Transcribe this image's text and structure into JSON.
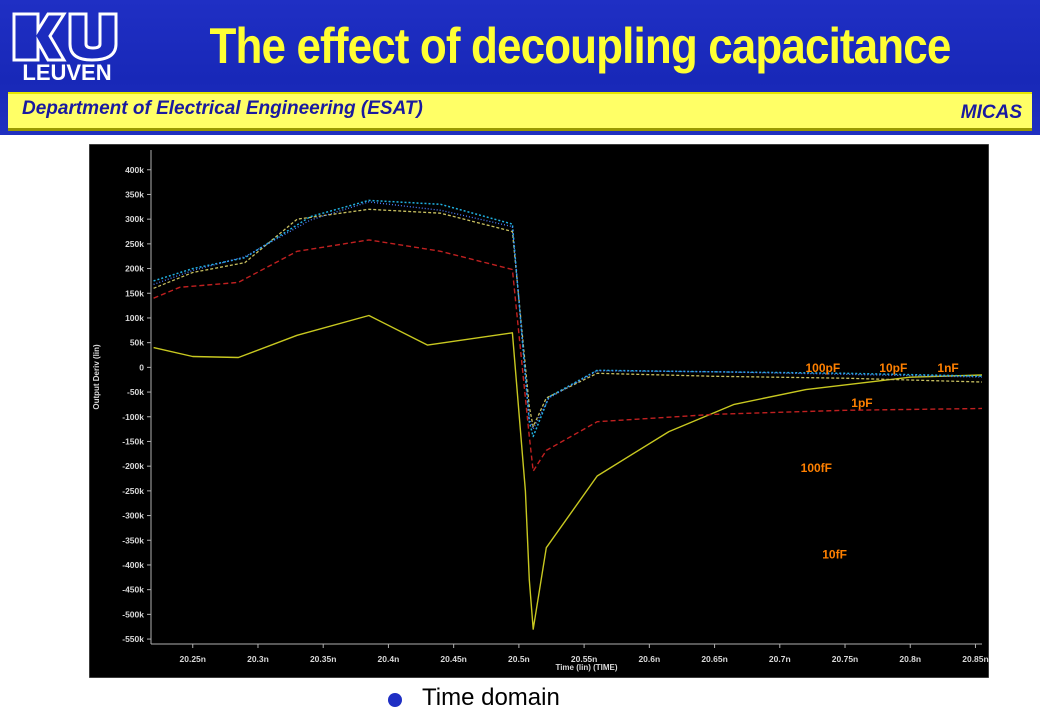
{
  "header": {
    "title": "The effect of decoupling capacitance",
    "logo_text": "LEUVEN",
    "department": "Department of Electrical Engineering (ESAT)",
    "group": "MICAS"
  },
  "bullet": "Time domain",
  "colors": {
    "header_bg": "#1f2fc4",
    "title": "#ffff33",
    "dept_bar": "#ffff66",
    "dept_text": "#1a1aa0",
    "plot_bg": "#000000",
    "label": "#ff8000"
  },
  "chart_data": {
    "type": "line",
    "xlabel": "Time (lin) (TIME)",
    "ylabel": "Output Deriv (lin)",
    "xlim": [
      20.218,
      20.855
    ],
    "ylim": [
      -560000,
      440000
    ],
    "x_ticks": [
      20.25,
      20.3,
      20.35,
      20.4,
      20.45,
      20.5,
      20.55,
      20.6,
      20.65,
      20.7,
      20.75,
      20.8,
      20.85
    ],
    "x_tick_labels": [
      "20.25n",
      "20.3n",
      "20.35n",
      "20.4n",
      "20.45n",
      "20.5n",
      "20.55n",
      "20.6n",
      "20.65n",
      "20.7n",
      "20.75n",
      "20.8n",
      "20.85n"
    ],
    "y_ticks": [
      400000,
      350000,
      300000,
      250000,
      200000,
      150000,
      100000,
      50000,
      0,
      -50000,
      -100000,
      -150000,
      -200000,
      -250000,
      -300000,
      -350000,
      -400000,
      -450000,
      -500000,
      -550000
    ],
    "y_tick_labels": [
      "400k",
      "350k",
      "300k",
      "250k",
      "200k",
      "150k",
      "100k",
      "50k",
      "0",
      "-50k",
      "-100k",
      "-150k",
      "-200k",
      "-250k",
      "-300k",
      "-350k",
      "-400k",
      "-450k",
      "-500k",
      "-550k"
    ],
    "series": [
      {
        "color": "#c8c820",
        "dash": "",
        "width": 1.4,
        "x": [
          20.22,
          20.25,
          20.285,
          20.33,
          20.385,
          20.43,
          20.495,
          20.505,
          20.508,
          20.511,
          20.521,
          20.56,
          20.615,
          20.665,
          20.72,
          20.8,
          20.86
        ],
        "y": [
          40000,
          22000,
          20000,
          65000,
          105000,
          45000,
          70000,
          -250000,
          -430000,
          -530000,
          -365000,
          -220000,
          -130000,
          -75000,
          -45000,
          -20000,
          -15000
        ]
      },
      {
        "color": "#c02020",
        "dash": "5,3",
        "width": 1.4,
        "x": [
          20.22,
          20.24,
          20.285,
          20.33,
          20.385,
          20.44,
          20.495,
          20.508,
          20.511,
          20.521,
          20.56,
          20.65,
          20.75,
          20.86
        ],
        "y": [
          140000,
          162000,
          172000,
          235000,
          258000,
          235000,
          198000,
          -140000,
          -210000,
          -168000,
          -110000,
          -95000,
          -87000,
          -83000
        ]
      },
      {
        "color": "#c8c060",
        "dash": "3,2",
        "width": 1.3,
        "x": [
          20.22,
          20.25,
          20.29,
          20.33,
          20.385,
          20.44,
          20.495,
          20.508,
          20.511,
          20.521,
          20.56,
          20.65,
          20.75,
          20.86
        ],
        "y": [
          160000,
          192000,
          212000,
          300000,
          320000,
          312000,
          275000,
          -80000,
          -120000,
          -62000,
          -12000,
          -18000,
          -22000,
          -30000
        ]
      },
      {
        "color": "#20b0e0",
        "dash": "2,2",
        "width": 1.5,
        "x": [
          20.22,
          20.25,
          20.29,
          20.34,
          20.385,
          20.44,
          20.495,
          20.508,
          20.511,
          20.523,
          20.56,
          20.65,
          20.75,
          20.86
        ],
        "y": [
          175000,
          200000,
          222000,
          305000,
          338000,
          330000,
          290000,
          -110000,
          -140000,
          -60000,
          -6000,
          -9000,
          -12000,
          -18000
        ]
      },
      {
        "color": "#5080ff",
        "dash": "1,2",
        "width": 1.3,
        "x": [
          20.22,
          20.25,
          20.29,
          20.34,
          20.385,
          20.44,
          20.495,
          20.508,
          20.511,
          20.523,
          20.56,
          20.65,
          20.75,
          20.86
        ],
        "y": [
          168000,
          196000,
          224000,
          298000,
          335000,
          318000,
          285000,
          -105000,
          -125000,
          -62000,
          -7000,
          -9000,
          -14000,
          -20000
        ]
      }
    ],
    "annotations": [
      {
        "text": "100pF",
        "x": 20.733,
        "y": -9000
      },
      {
        "text": "10pF",
        "x": 20.787,
        "y": -9000
      },
      {
        "text": "1nF",
        "x": 20.829,
        "y": -9000
      },
      {
        "text": "1pF",
        "x": 20.763,
        "y": -80000
      },
      {
        "text": "100fF",
        "x": 20.728,
        "y": -212000
      },
      {
        "text": "10fF",
        "x": 20.742,
        "y": -387000
      }
    ]
  }
}
